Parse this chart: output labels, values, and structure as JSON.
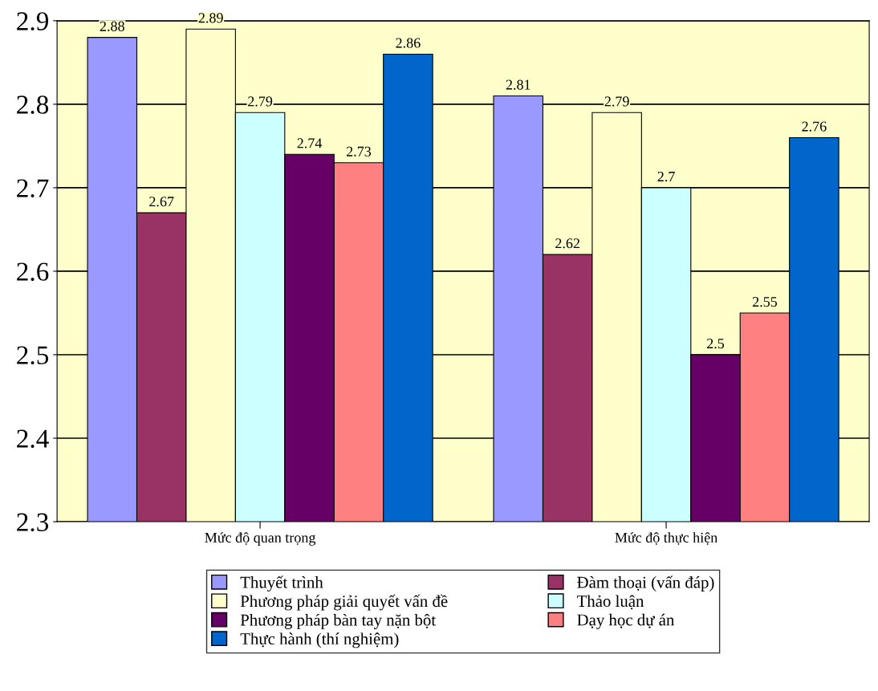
{
  "chart_data": {
    "type": "bar",
    "categories": [
      "Mức độ quan trọng",
      "Mức độ thực hiện"
    ],
    "series": [
      {
        "name": "Thuyết trình",
        "color": "#9999ff",
        "values": [
          2.88,
          2.81
        ]
      },
      {
        "name": "Đàm thoại (vấn đáp)",
        "color": "#993366",
        "values": [
          2.67,
          2.62
        ]
      },
      {
        "name": "Phương pháp giải quyết vấn đề",
        "color": "#ffffcc",
        "values": [
          2.89,
          2.79
        ]
      },
      {
        "name": "Thảo luận",
        "color": "#ccffff",
        "values": [
          2.79,
          2.7
        ]
      },
      {
        "name": "Phương pháp bàn tay nặn bột",
        "color": "#660066",
        "values": [
          2.74,
          2.5
        ]
      },
      {
        "name": "Dạy học dự án",
        "color": "#ff8080",
        "values": [
          2.73,
          2.55
        ]
      },
      {
        "name": "Thực hành (thí nghiệm)",
        "color": "#0066cc",
        "values": [
          2.86,
          2.76
        ]
      }
    ],
    "ylim": [
      2.3,
      2.9
    ],
    "yticks": [
      2.3,
      2.4,
      2.5,
      2.6,
      2.7,
      2.8,
      2.9
    ],
    "grid": "y",
    "legend": "bottom",
    "data_labels": true
  }
}
